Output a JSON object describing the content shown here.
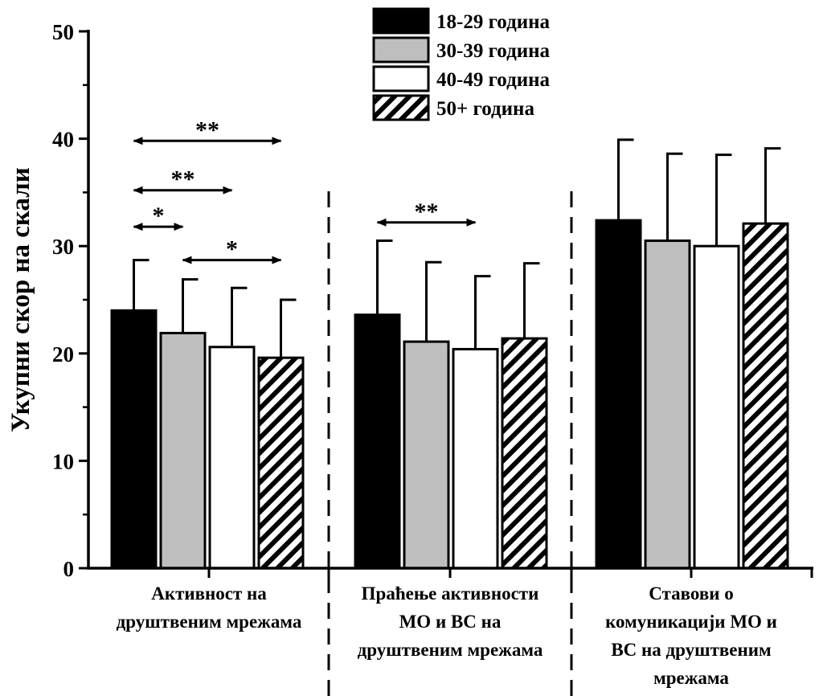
{
  "chart_data": {
    "type": "bar",
    "ylabel": "Укупни скор на скали",
    "ylim": [
      0,
      50
    ],
    "yticks": [
      0,
      10,
      20,
      30,
      40,
      50
    ],
    "categories": [
      [
        "Активност на",
        "друштвеним мрежама"
      ],
      [
        "Праћење активности",
        "МО и ВС на",
        "друштвеним мрежама"
      ],
      [
        "Ставови о",
        "комуникацији МО и",
        "ВС на друштвеним",
        "мрежама"
      ]
    ],
    "series": [
      {
        "name": "18-29 година",
        "fill": "black",
        "values": [
          24.0,
          23.6,
          32.4
        ],
        "errors": [
          4.7,
          6.9,
          7.5
        ]
      },
      {
        "name": "30-39 година",
        "fill": "gray",
        "values": [
          21.9,
          21.1,
          30.5
        ],
        "errors": [
          5.0,
          7.4,
          8.1
        ]
      },
      {
        "name": "40-49 година",
        "fill": "white",
        "values": [
          20.6,
          20.4,
          30.0
        ],
        "errors": [
          5.5,
          6.8,
          8.5
        ]
      },
      {
        "name": "50+ година",
        "fill": "hatched",
        "values": [
          19.6,
          21.4,
          32.1
        ],
        "errors": [
          5.4,
          7.0,
          7.0
        ]
      }
    ],
    "significance": [
      {
        "group": 0,
        "from": 0,
        "to": 3,
        "label": "**",
        "level": 39.8
      },
      {
        "group": 0,
        "from": 0,
        "to": 2,
        "label": "**",
        "level": 35.2
      },
      {
        "group": 0,
        "from": 0,
        "to": 1,
        "label": "*",
        "level": 31.8
      },
      {
        "group": 0,
        "from": 1,
        "to": 3,
        "label": "*",
        "level": 28.7
      },
      {
        "group": 1,
        "from": 0,
        "to": 2,
        "label": "**",
        "level": 32.2
      }
    ],
    "colors": {
      "gray": "#bebebe",
      "black": "#000000",
      "white": "#ffffff"
    }
  }
}
